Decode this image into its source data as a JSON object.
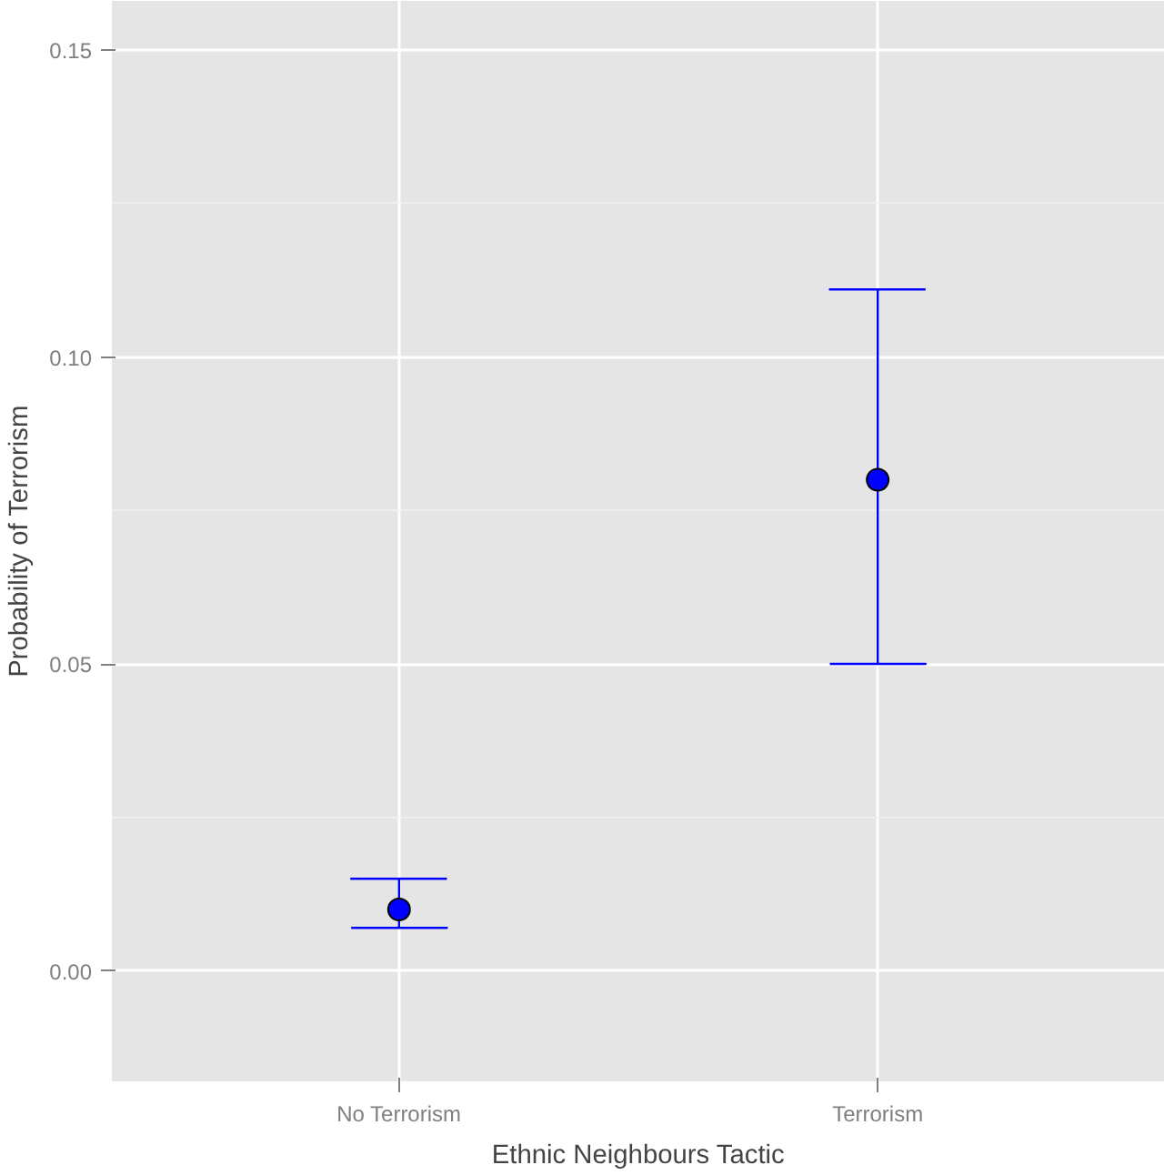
{
  "chart_data": {
    "type": "scatter",
    "xlabel": "Ethnic Neighbours Tactic",
    "ylabel": "Probability of Terrorism",
    "categories": [
      "No Terrorism",
      "Terrorism"
    ],
    "series": [
      {
        "color": "#0000ff",
        "values": [
          0.01,
          0.08
        ],
        "errors": [
          [
            0.007,
            0.015
          ],
          [
            0.05,
            0.111
          ]
        ]
      }
    ],
    "ylim": [
      -0.018,
      0.158
    ],
    "yticks": [
      {
        "value": 0,
        "label": "0.00"
      },
      0.05,
      {
        "value": 0.1,
        "label": "0.10"
      },
      0.15
    ],
    "grid": true,
    "marker": "circle"
  }
}
